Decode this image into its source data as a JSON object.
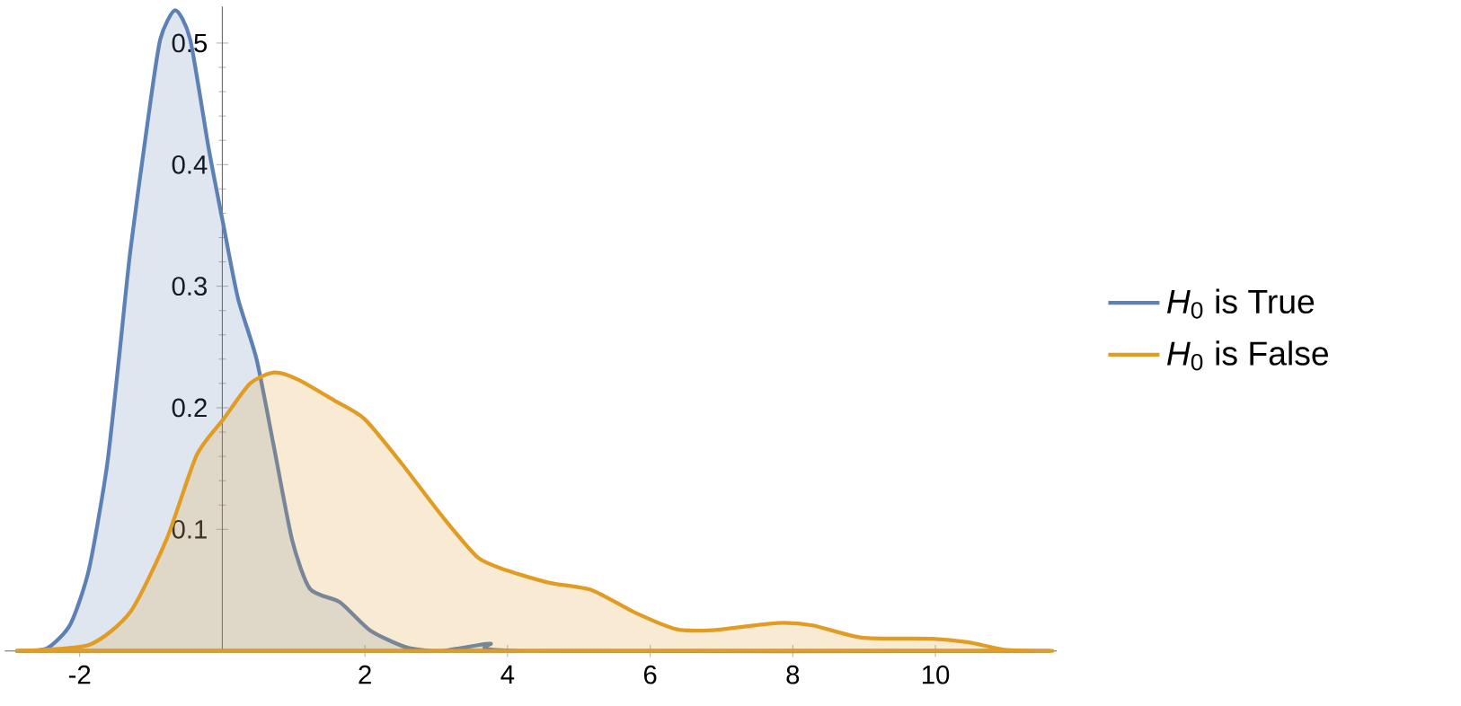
{
  "chart_data": {
    "type": "area",
    "x": [
      -2.88,
      -2.46,
      -2.13,
      -1.87,
      -1.62,
      -1.45,
      -1.29,
      -1.04,
      -0.87,
      -0.66,
      -0.45,
      -0.19,
      0.02,
      0.22,
      0.48,
      0.73,
      0.98,
      1.23,
      1.65,
      2.07,
      2.58,
      3.08,
      3.75,
      4.17,
      11.6
    ],
    "series": [
      {
        "name": "*H*$_{0}$ is True",
        "color": "#5e81b5",
        "values": [
          0,
          0.002,
          0.022,
          0.067,
          0.151,
          0.24,
          0.329,
          0.438,
          0.503,
          0.527,
          0.503,
          0.413,
          0.349,
          0.29,
          0.24,
          0.166,
          0.091,
          0.051,
          0.04,
          0.017,
          0.003,
          0,
          0.006,
          0,
          0
        ]
      },
      {
        "name": "*H*$_{0}$ is False",
        "color": "#e19c24",
        "x": [
          -2.88,
          -1.87,
          -1.29,
          -0.78,
          -0.36,
          0.02,
          0.39,
          0.73,
          1.07,
          1.57,
          1.99,
          2.49,
          3.08,
          3.58,
          4.0,
          4.59,
          5.18,
          5.77,
          6.36,
          6.86,
          7.78,
          8.28,
          8.96,
          9.96,
          10.47,
          10.97,
          11.64
        ],
        "values": [
          0,
          0.005,
          0.032,
          0.092,
          0.161,
          0.191,
          0.22,
          0.229,
          0.223,
          0.206,
          0.191,
          0.156,
          0.111,
          0.077,
          0.066,
          0.056,
          0.05,
          0.032,
          0.018,
          0.017,
          0.023,
          0.021,
          0.011,
          0.01,
          0.007,
          0.001,
          0
        ]
      }
    ],
    "xlim": [
      -3.05,
      11.7
    ],
    "ylim": [
      0,
      0.53
    ],
    "xticks": [
      -2,
      2,
      4,
      6,
      8,
      10
    ],
    "yticks": [
      0.1,
      0.2,
      0.3,
      0.4,
      0.5
    ],
    "legend": "right"
  }
}
